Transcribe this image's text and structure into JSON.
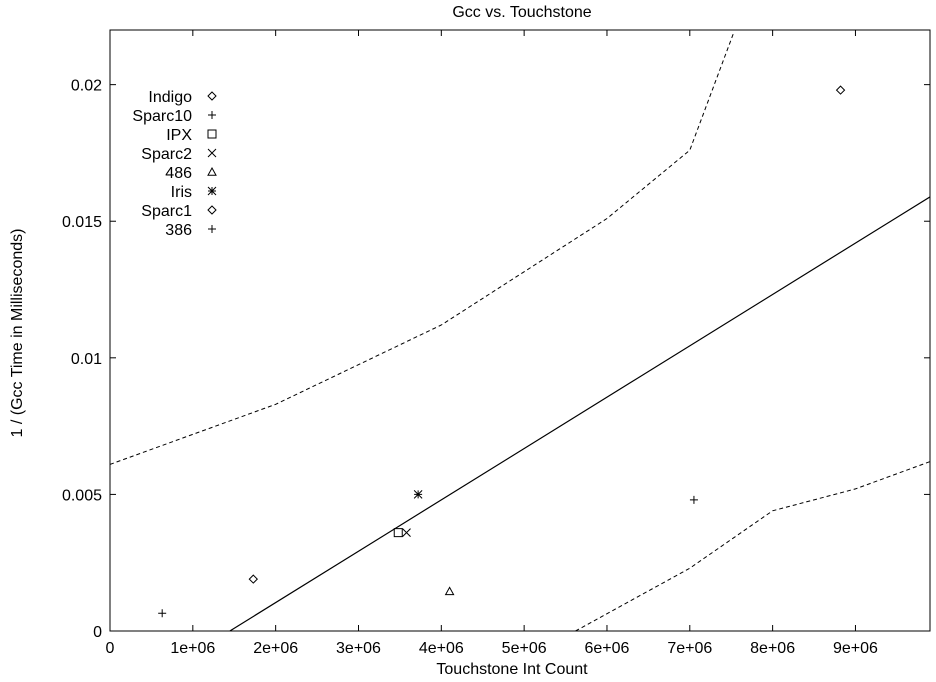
{
  "chart_data": {
    "type": "scatter",
    "title": "Gcc vs. Touchstone",
    "xlabel": "Touchstone Int Count",
    "ylabel": "1 / (Gcc Time in Milliseconds)",
    "xlim": [
      0,
      9900000
    ],
    "ylim": [
      0,
      0.022
    ],
    "grid": false,
    "legend_position": "top-left",
    "x_ticks": [
      0,
      1000000,
      2000000,
      3000000,
      4000000,
      5000000,
      6000000,
      7000000,
      8000000,
      9000000
    ],
    "x_tick_labels": [
      "0",
      "1e+06",
      "2e+06",
      "3e+06",
      "4e+06",
      "5e+06",
      "6e+06",
      "7e+06",
      "8e+06",
      "9e+06"
    ],
    "y_ticks": [
      0,
      0.005,
      0.01,
      0.015,
      0.02
    ],
    "y_tick_labels": [
      "0",
      "0.005",
      "0.01",
      "0.015",
      "0.02"
    ],
    "series": [
      {
        "name": "Indigo",
        "marker": "diamond",
        "x": [
          8820000
        ],
        "y": [
          0.0198
        ]
      },
      {
        "name": "Sparc10",
        "marker": "plus",
        "x": [
          7050000
        ],
        "y": [
          0.0048
        ]
      },
      {
        "name": "IPX",
        "marker": "square",
        "x": [
          3480000
        ],
        "y": [
          0.0036
        ]
      },
      {
        "name": "Sparc2",
        "marker": "cross",
        "x": [
          3580000
        ],
        "y": [
          0.0036
        ]
      },
      {
        "name": "486",
        "marker": "triangle",
        "x": [
          4100000
        ],
        "y": [
          0.00145
        ]
      },
      {
        "name": "Iris",
        "marker": "star",
        "x": [
          3720000
        ],
        "y": [
          0.005
        ]
      },
      {
        "name": "Sparc1",
        "marker": "diamond",
        "x": [
          1730000
        ],
        "y": [
          0.0019
        ]
      },
      {
        "name": "386",
        "marker": "plus",
        "x": [
          630000
        ],
        "y": [
          0.00065
        ]
      }
    ],
    "fit_line": {
      "slope": 1.88e-09,
      "intercept": -0.00272,
      "style": "solid"
    },
    "confidence_bands": {
      "upper": [
        [
          0,
          0.0061
        ],
        [
          2000000,
          0.0083
        ],
        [
          4000000,
          0.0112
        ],
        [
          6000000,
          0.0151
        ],
        [
          7000000,
          0.0176
        ],
        [
          7530000,
          0.0219
        ]
      ],
      "lower": [
        [
          5620000,
          0
        ],
        [
          7000000,
          0.0023
        ],
        [
          8000000,
          0.0044
        ],
        [
          9000000,
          0.0052
        ],
        [
          9900000,
          0.0062
        ]
      ],
      "style": "dashed"
    }
  }
}
